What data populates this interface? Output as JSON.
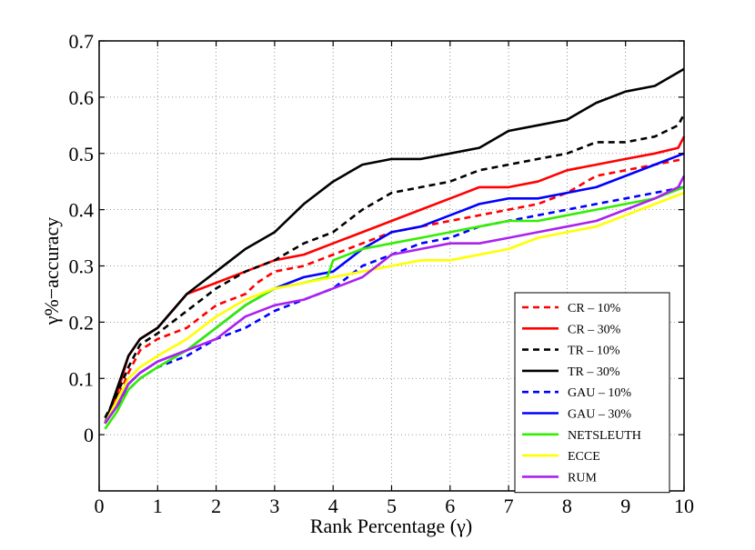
{
  "chart_data": {
    "type": "line",
    "xlabel": "Rank Percentage (γ)",
    "ylabel": "γ%−accuracy",
    "xlim": [
      0,
      10
    ],
    "ylim": [
      -0.1,
      0.7
    ],
    "xticks": [
      0,
      1,
      2,
      3,
      4,
      5,
      6,
      7,
      8,
      9,
      10
    ],
    "yticks": [
      0,
      0.1,
      0.2,
      0.3,
      0.4,
      0.5,
      0.6,
      0.7
    ],
    "xtick_labels": [
      "0",
      "1",
      "2",
      "3",
      "4",
      "5",
      "6",
      "7",
      "8",
      "9",
      "10"
    ],
    "ytick_labels": [
      "0",
      "0.1",
      "0.2",
      "0.3",
      "0.4",
      "0.5",
      "0.6",
      "0.7"
    ],
    "grid": true,
    "legend_position": "bottom-right",
    "series": [
      {
        "name": "CR – 10%",
        "color": "#ff0000",
        "dash": "dashed",
        "x": [
          0.1,
          0.3,
          0.5,
          0.7,
          1.0,
          1.5,
          2.0,
          2.5,
          2.7,
          3.0,
          3.5,
          4.0,
          4.5,
          5.0,
          5.5,
          6.0,
          6.5,
          7.0,
          7.5,
          8.0,
          8.5,
          9.0,
          9.5,
          10.0
        ],
        "y": [
          0.02,
          0.06,
          0.11,
          0.15,
          0.17,
          0.19,
          0.23,
          0.25,
          0.27,
          0.29,
          0.3,
          0.32,
          0.34,
          0.36,
          0.37,
          0.38,
          0.39,
          0.4,
          0.41,
          0.43,
          0.46,
          0.47,
          0.48,
          0.49
        ]
      },
      {
        "name": "CR – 30%",
        "color": "#ff0000",
        "dash": "solid",
        "x": [
          0.1,
          0.3,
          0.5,
          0.7,
          1.0,
          1.5,
          2.0,
          2.5,
          3.0,
          3.5,
          4.0,
          4.5,
          5.0,
          5.5,
          6.0,
          6.5,
          7.0,
          7.5,
          8.0,
          8.5,
          9.0,
          9.5,
          9.9,
          10.0
        ],
        "y": [
          0.02,
          0.07,
          0.14,
          0.17,
          0.19,
          0.25,
          0.27,
          0.29,
          0.31,
          0.32,
          0.34,
          0.36,
          0.38,
          0.4,
          0.42,
          0.44,
          0.44,
          0.45,
          0.47,
          0.48,
          0.49,
          0.5,
          0.51,
          0.53
        ]
      },
      {
        "name": "TR – 10%",
        "color": "#000000",
        "dash": "dashed",
        "x": [
          0.1,
          0.3,
          0.5,
          0.7,
          1.0,
          1.5,
          2.0,
          2.5,
          3.0,
          3.5,
          4.0,
          4.5,
          5.0,
          5.5,
          6.0,
          6.5,
          7.0,
          7.5,
          8.0,
          8.5,
          9.0,
          9.5,
          9.9,
          10.0
        ],
        "y": [
          0.03,
          0.07,
          0.12,
          0.16,
          0.18,
          0.22,
          0.26,
          0.29,
          0.31,
          0.34,
          0.36,
          0.4,
          0.43,
          0.44,
          0.45,
          0.47,
          0.48,
          0.49,
          0.5,
          0.52,
          0.52,
          0.53,
          0.55,
          0.57
        ]
      },
      {
        "name": "TR – 30%",
        "color": "#000000",
        "dash": "solid",
        "x": [
          0.1,
          0.3,
          0.5,
          0.7,
          1.0,
          1.5,
          2.0,
          2.5,
          3.0,
          3.5,
          4.0,
          4.5,
          5.0,
          5.5,
          6.0,
          6.5,
          7.0,
          7.5,
          8.0,
          8.5,
          9.0,
          9.5,
          10.0
        ],
        "y": [
          0.02,
          0.08,
          0.14,
          0.17,
          0.19,
          0.25,
          0.29,
          0.33,
          0.36,
          0.41,
          0.45,
          0.48,
          0.49,
          0.49,
          0.5,
          0.51,
          0.54,
          0.55,
          0.56,
          0.59,
          0.61,
          0.62,
          0.65
        ]
      },
      {
        "name": "GAU – 10%",
        "color": "#0000ff",
        "dash": "dashed",
        "x": [
          0.1,
          0.3,
          0.5,
          0.7,
          1.0,
          1.5,
          2.0,
          2.5,
          3.0,
          3.5,
          4.0,
          4.5,
          5.0,
          5.5,
          6.0,
          6.5,
          7.0,
          7.5,
          8.0,
          8.5,
          9.0,
          9.5,
          10.0
        ],
        "y": [
          0.02,
          0.05,
          0.08,
          0.1,
          0.12,
          0.14,
          0.17,
          0.19,
          0.22,
          0.24,
          0.26,
          0.3,
          0.32,
          0.34,
          0.35,
          0.37,
          0.38,
          0.39,
          0.4,
          0.41,
          0.42,
          0.43,
          0.44
        ]
      },
      {
        "name": "GAU – 30%",
        "color": "#0000ff",
        "dash": "solid",
        "x": [
          0.1,
          0.3,
          0.5,
          0.7,
          1.0,
          1.5,
          2.0,
          2.5,
          3.0,
          3.5,
          4.0,
          4.5,
          5.0,
          5.5,
          6.0,
          6.5,
          7.0,
          7.5,
          8.0,
          8.5,
          9.0,
          9.5,
          10.0
        ],
        "y": [
          0.02,
          0.05,
          0.09,
          0.11,
          0.13,
          0.15,
          0.19,
          0.23,
          0.26,
          0.28,
          0.29,
          0.33,
          0.36,
          0.37,
          0.39,
          0.41,
          0.42,
          0.42,
          0.43,
          0.44,
          0.46,
          0.48,
          0.5
        ]
      },
      {
        "name": "NETSLEUTH",
        "color": "#33ee00",
        "dash": "solid",
        "x": [
          0.1,
          0.3,
          0.5,
          0.7,
          1.0,
          1.5,
          2.0,
          2.5,
          3.0,
          3.5,
          3.9,
          4.0,
          4.5,
          5.0,
          5.5,
          6.0,
          6.5,
          7.0,
          7.5,
          8.0,
          8.5,
          9.0,
          9.5,
          10.0
        ],
        "y": [
          0.01,
          0.04,
          0.08,
          0.1,
          0.12,
          0.15,
          0.19,
          0.23,
          0.26,
          0.27,
          0.28,
          0.31,
          0.33,
          0.34,
          0.35,
          0.36,
          0.37,
          0.38,
          0.38,
          0.39,
          0.4,
          0.41,
          0.42,
          0.44
        ]
      },
      {
        "name": "ECCE",
        "color": "#ffff00",
        "dash": "solid",
        "x": [
          0.1,
          0.3,
          0.5,
          0.7,
          1.0,
          1.5,
          2.0,
          2.5,
          3.0,
          3.5,
          4.0,
          4.5,
          5.0,
          5.5,
          6.0,
          6.5,
          7.0,
          7.5,
          8.0,
          8.5,
          9.0,
          9.5,
          10.0
        ],
        "y": [
          0.02,
          0.06,
          0.1,
          0.12,
          0.14,
          0.17,
          0.21,
          0.24,
          0.26,
          0.27,
          0.28,
          0.29,
          0.3,
          0.31,
          0.31,
          0.32,
          0.33,
          0.35,
          0.36,
          0.37,
          0.39,
          0.41,
          0.43
        ]
      },
      {
        "name": "RUM",
        "color": "#aa22ee",
        "dash": "solid",
        "x": [
          0.1,
          0.3,
          0.5,
          0.7,
          1.0,
          1.5,
          2.0,
          2.5,
          3.0,
          3.5,
          4.0,
          4.5,
          5.0,
          5.5,
          6.0,
          6.5,
          7.0,
          7.5,
          8.0,
          8.5,
          9.0,
          9.5,
          9.9,
          10.0
        ],
        "y": [
          0.02,
          0.05,
          0.09,
          0.11,
          0.13,
          0.15,
          0.17,
          0.21,
          0.23,
          0.24,
          0.26,
          0.28,
          0.32,
          0.33,
          0.34,
          0.34,
          0.35,
          0.36,
          0.37,
          0.38,
          0.4,
          0.42,
          0.44,
          0.46
        ]
      }
    ]
  }
}
